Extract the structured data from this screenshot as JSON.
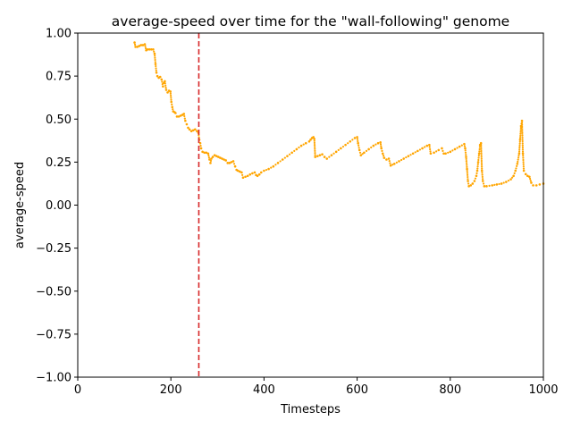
{
  "chart_data": {
    "type": "scatter",
    "title": "average-speed over time for the \"wall-following\" genome",
    "xlabel": "Timesteps",
    "ylabel": "average-speed",
    "xlim": [
      0,
      1000
    ],
    "ylim": [
      -1.0,
      1.0
    ],
    "x_ticks": [
      0,
      200,
      400,
      600,
      800,
      1000
    ],
    "x_tick_labels": [
      "0",
      "200",
      "400",
      "600",
      "800",
      "1000"
    ],
    "y_ticks": [
      -1.0,
      -0.75,
      -0.5,
      -0.25,
      0.0,
      0.25,
      0.5,
      0.75,
      1.0
    ],
    "y_tick_labels": [
      "−1.00",
      "−0.75",
      "−0.50",
      "−0.25",
      "0.00",
      "0.25",
      "0.50",
      "0.75",
      "1.00"
    ],
    "grid": false,
    "marker_color": "#FFA500",
    "vline": {
      "x": 260,
      "color": "#D62728",
      "style": "dashed"
    },
    "series": [
      {
        "points": [
          [
            122,
            0.945
          ],
          [
            124,
            0.92
          ],
          [
            128,
            0.92
          ],
          [
            132,
            0.925
          ],
          [
            136,
            0.93
          ],
          [
            140,
            0.93
          ],
          [
            144,
            0.935
          ],
          [
            147,
            0.9
          ],
          [
            150,
            0.905
          ],
          [
            154,
            0.905
          ],
          [
            158,
            0.905
          ],
          [
            162,
            0.905
          ],
          [
            165,
            0.88
          ],
          [
            167,
            0.82
          ],
          [
            169,
            0.77
          ],
          [
            171,
            0.75
          ],
          [
            174,
            0.74
          ],
          [
            177,
            0.745
          ],
          [
            180,
            0.73
          ],
          [
            183,
            0.69
          ],
          [
            185,
            0.71
          ],
          [
            187,
            0.72
          ],
          [
            190,
            0.67
          ],
          [
            193,
            0.655
          ],
          [
            196,
            0.665
          ],
          [
            199,
            0.66
          ],
          [
            201,
            0.6
          ],
          [
            203,
            0.57
          ],
          [
            205,
            0.545
          ],
          [
            208,
            0.54
          ],
          [
            210,
            0.535
          ],
          [
            213,
            0.515
          ],
          [
            217,
            0.515
          ],
          [
            221,
            0.52
          ],
          [
            225,
            0.525
          ],
          [
            228,
            0.53
          ],
          [
            231,
            0.49
          ],
          [
            234,
            0.47
          ],
          [
            237,
            0.45
          ],
          [
            240,
            0.44
          ],
          [
            244,
            0.43
          ],
          [
            248,
            0.435
          ],
          [
            252,
            0.44
          ],
          [
            256,
            0.43
          ],
          [
            259,
            0.42
          ],
          [
            261,
            0.38
          ],
          [
            263,
            0.36
          ],
          [
            265,
            0.33
          ],
          [
            268,
            0.31
          ],
          [
            272,
            0.305
          ],
          [
            276,
            0.305
          ],
          [
            280,
            0.3
          ],
          [
            283,
            0.265
          ],
          [
            285,
            0.245
          ],
          [
            287,
            0.27
          ],
          [
            290,
            0.28
          ],
          [
            294,
            0.29
          ],
          [
            298,
            0.285
          ],
          [
            302,
            0.28
          ],
          [
            306,
            0.275
          ],
          [
            310,
            0.27
          ],
          [
            314,
            0.265
          ],
          [
            318,
            0.26
          ],
          [
            322,
            0.245
          ],
          [
            326,
            0.245
          ],
          [
            330,
            0.25
          ],
          [
            334,
            0.255
          ],
          [
            338,
            0.225
          ],
          [
            341,
            0.205
          ],
          [
            344,
            0.2
          ],
          [
            348,
            0.195
          ],
          [
            352,
            0.19
          ],
          [
            355,
            0.16
          ],
          [
            360,
            0.165
          ],
          [
            365,
            0.17
          ],
          [
            370,
            0.178
          ],
          [
            375,
            0.185
          ],
          [
            380,
            0.19
          ],
          [
            383,
            0.175
          ],
          [
            386,
            0.17
          ],
          [
            390,
            0.178
          ],
          [
            394,
            0.19
          ],
          [
            400,
            0.2
          ],
          [
            410,
            0.21
          ],
          [
            420,
            0.225
          ],
          [
            430,
            0.245
          ],
          [
            440,
            0.265
          ],
          [
            450,
            0.285
          ],
          [
            460,
            0.305
          ],
          [
            470,
            0.325
          ],
          [
            480,
            0.345
          ],
          [
            490,
            0.36
          ],
          [
            497,
            0.37
          ],
          [
            500,
            0.38
          ],
          [
            503,
            0.39
          ],
          [
            506,
            0.395
          ],
          [
            508,
            0.385
          ],
          [
            510,
            0.28
          ],
          [
            515,
            0.285
          ],
          [
            520,
            0.29
          ],
          [
            525,
            0.295
          ],
          [
            530,
            0.28
          ],
          [
            535,
            0.27
          ],
          [
            545,
            0.29
          ],
          [
            555,
            0.31
          ],
          [
            565,
            0.33
          ],
          [
            575,
            0.35
          ],
          [
            585,
            0.37
          ],
          [
            595,
            0.39
          ],
          [
            600,
            0.395
          ],
          [
            602,
            0.36
          ],
          [
            605,
            0.32
          ],
          [
            608,
            0.29
          ],
          [
            615,
            0.305
          ],
          [
            625,
            0.325
          ],
          [
            635,
            0.345
          ],
          [
            645,
            0.36
          ],
          [
            650,
            0.365
          ],
          [
            652,
            0.33
          ],
          [
            655,
            0.3
          ],
          [
            658,
            0.275
          ],
          [
            663,
            0.265
          ],
          [
            668,
            0.27
          ],
          [
            672,
            0.23
          ],
          [
            680,
            0.24
          ],
          [
            690,
            0.255
          ],
          [
            700,
            0.27
          ],
          [
            710,
            0.285
          ],
          [
            720,
            0.3
          ],
          [
            730,
            0.315
          ],
          [
            740,
            0.33
          ],
          [
            750,
            0.345
          ],
          [
            755,
            0.35
          ],
          [
            758,
            0.3
          ],
          [
            765,
            0.305
          ],
          [
            775,
            0.32
          ],
          [
            782,
            0.33
          ],
          [
            786,
            0.3
          ],
          [
            790,
            0.3
          ],
          [
            800,
            0.31
          ],
          [
            810,
            0.325
          ],
          [
            820,
            0.34
          ],
          [
            830,
            0.355
          ],
          [
            832,
            0.33
          ],
          [
            834,
            0.28
          ],
          [
            836,
            0.21
          ],
          [
            838,
            0.14
          ],
          [
            840,
            0.11
          ],
          [
            844,
            0.115
          ],
          [
            848,
            0.125
          ],
          [
            852,
            0.14
          ],
          [
            856,
            0.17
          ],
          [
            858,
            0.2
          ],
          [
            860,
            0.25
          ],
          [
            862,
            0.3
          ],
          [
            864,
            0.35
          ],
          [
            866,
            0.36
          ],
          [
            868,
            0.2
          ],
          [
            870,
            0.14
          ],
          [
            873,
            0.11
          ],
          [
            878,
            0.11
          ],
          [
            890,
            0.115
          ],
          [
            900,
            0.12
          ],
          [
            910,
            0.125
          ],
          [
            920,
            0.135
          ],
          [
            930,
            0.15
          ],
          [
            936,
            0.17
          ],
          [
            940,
            0.2
          ],
          [
            944,
            0.24
          ],
          [
            948,
            0.3
          ],
          [
            950,
            0.38
          ],
          [
            952,
            0.46
          ],
          [
            954,
            0.49
          ],
          [
            956,
            0.3
          ],
          [
            958,
            0.2
          ],
          [
            962,
            0.18
          ],
          [
            966,
            0.17
          ],
          [
            970,
            0.165
          ],
          [
            974,
            0.13
          ],
          [
            978,
            0.115
          ],
          [
            985,
            0.115
          ],
          [
            992,
            0.12
          ],
          [
            1000,
            0.125
          ]
        ]
      }
    ]
  }
}
